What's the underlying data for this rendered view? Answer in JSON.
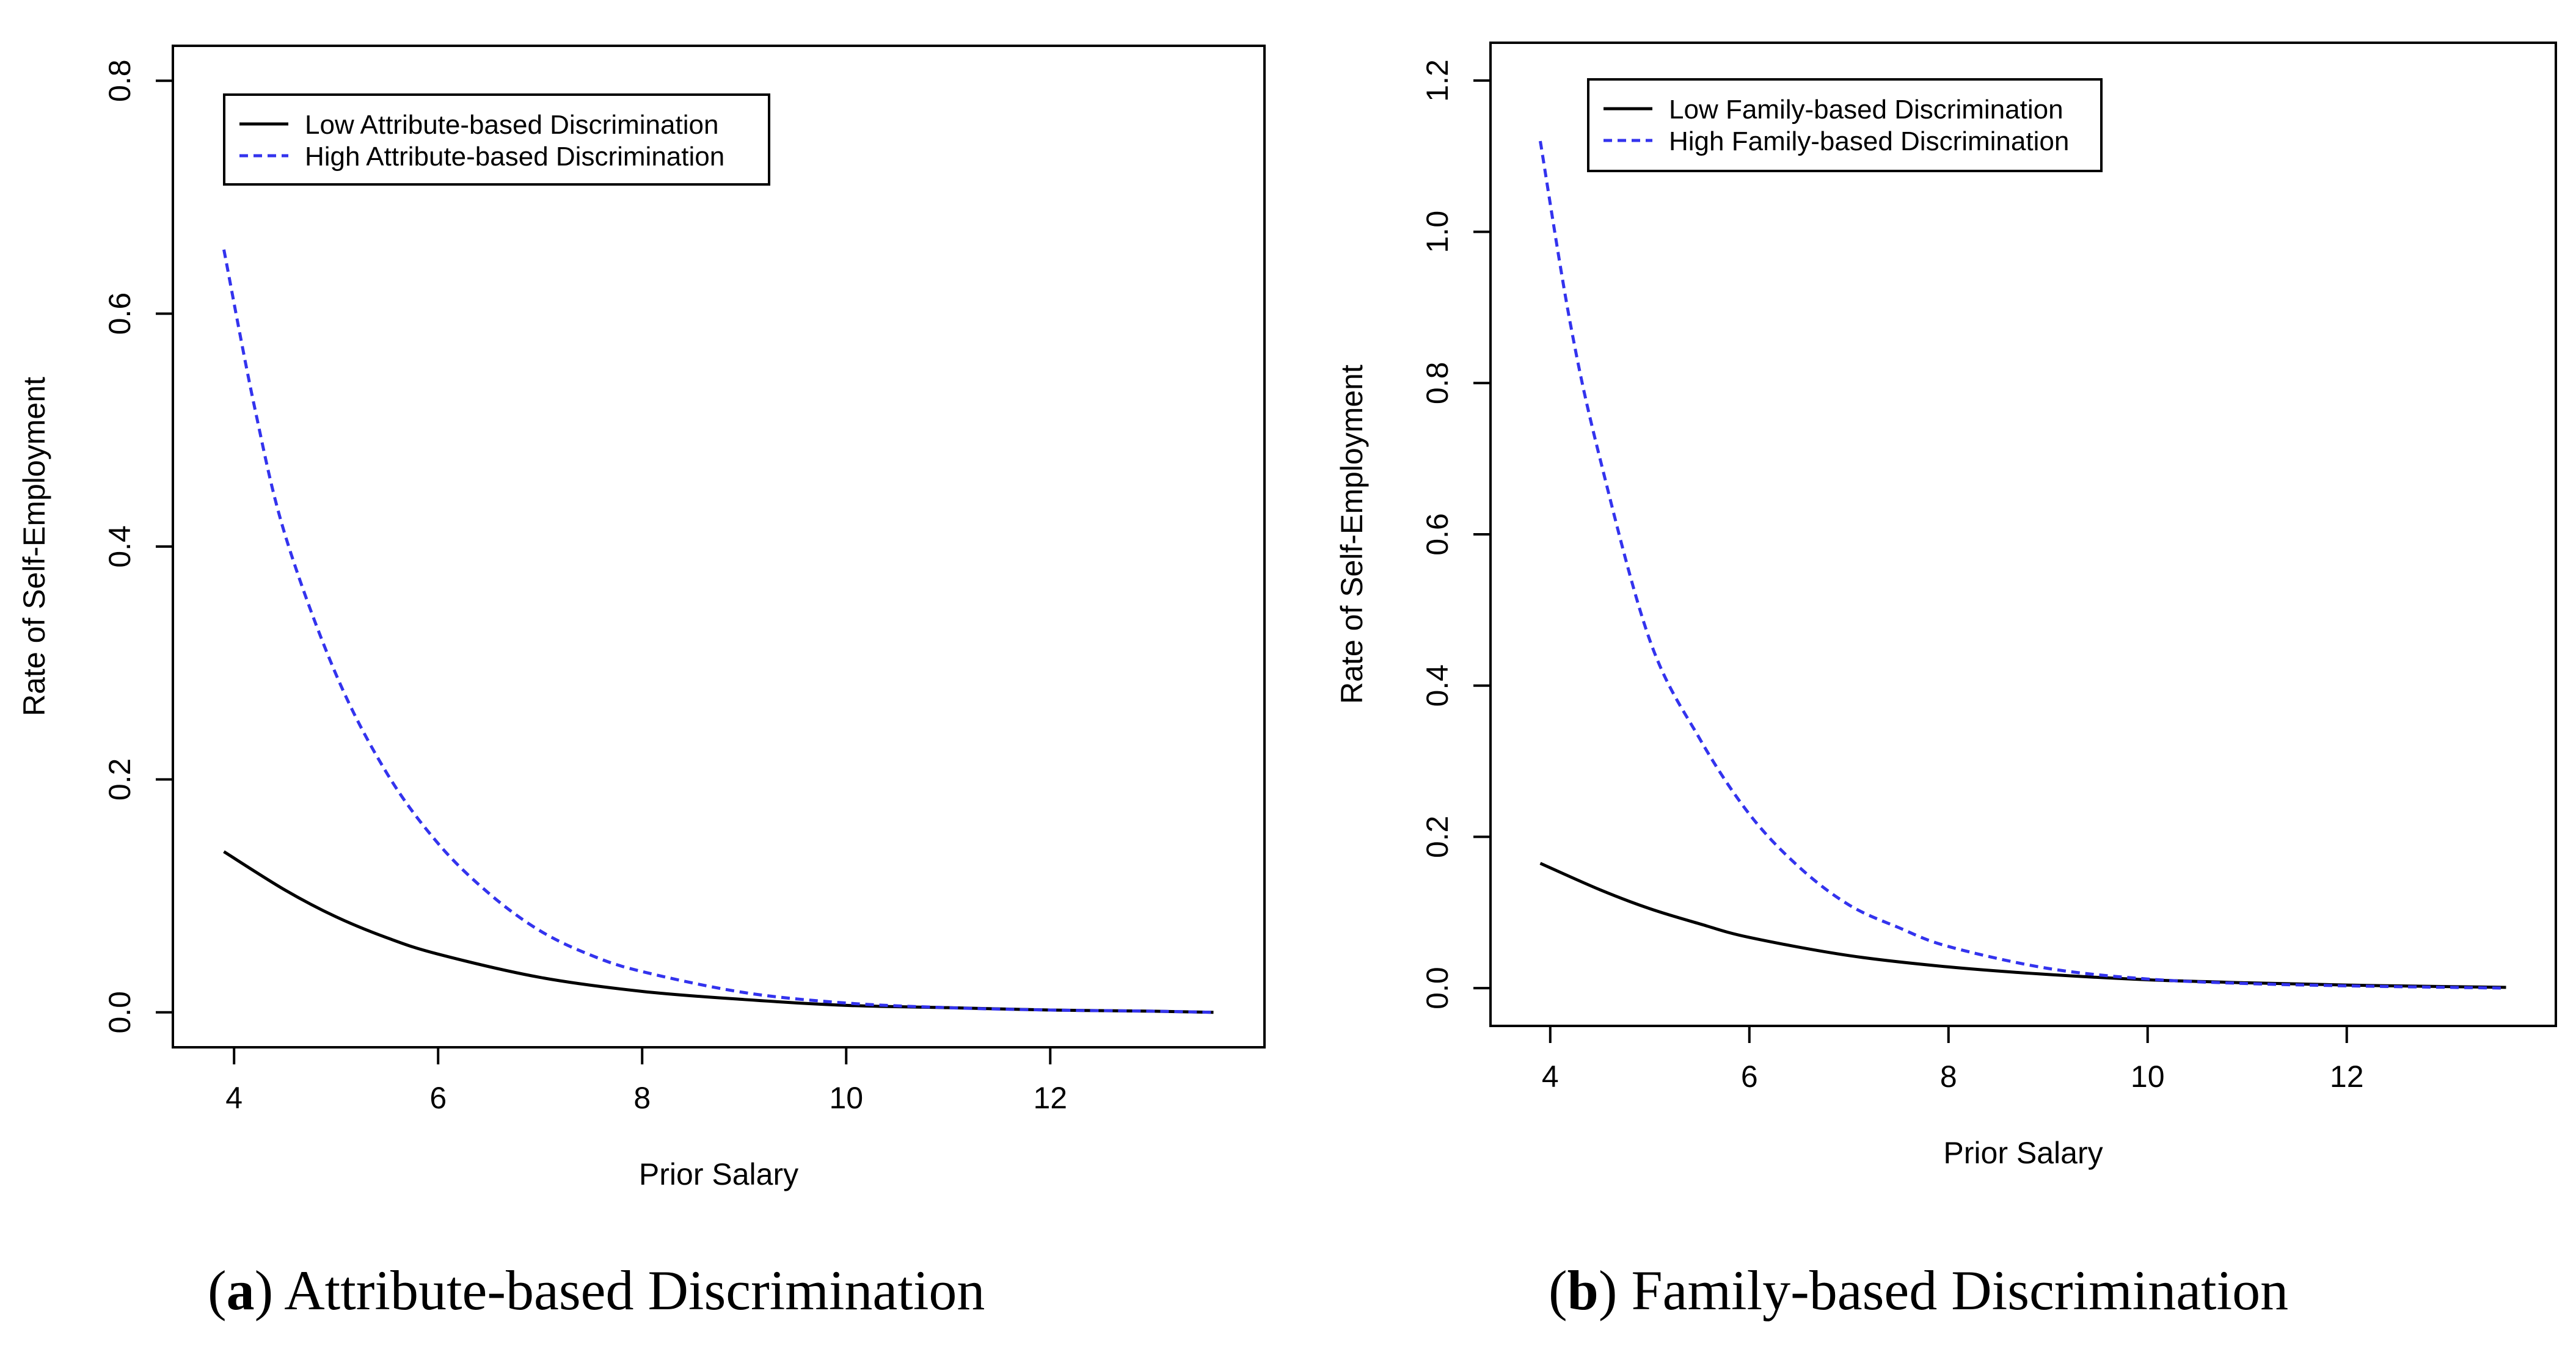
{
  "chart_data": [
    {
      "type": "line",
      "panel_id": "a",
      "caption_label": "a",
      "caption_text": "Attribute-based Discrimination",
      "xlabel": "Prior Salary",
      "ylabel": "Rate of Self-Employment",
      "xlim": [
        3.4,
        14.1
      ],
      "ylim": [
        -0.03,
        0.83
      ],
      "xticks": [
        4,
        6,
        8,
        10,
        12
      ],
      "yticks": [
        0.0,
        0.2,
        0.4,
        0.6,
        0.8
      ],
      "ytick_labels": [
        "0.0",
        "0.2",
        "0.4",
        "0.6",
        "0.8"
      ],
      "legend": {
        "position": "top-left"
      },
      "grid": false,
      "series": [
        {
          "name": "Low Attribute-based Discrimination",
          "style": "solid",
          "color": "#000000",
          "x": [
            3.9,
            4.5,
            5.0,
            5.5,
            6.0,
            7.0,
            8.0,
            9.0,
            10.0,
            11.0,
            12.0,
            13.0,
            13.6
          ],
          "y": [
            0.138,
            0.105,
            0.082,
            0.064,
            0.05,
            0.03,
            0.018,
            0.011,
            0.006,
            0.004,
            0.002,
            0.001,
            0.0
          ]
        },
        {
          "name": "High Attribute-based Discrimination",
          "style": "dashed",
          "color": "#3333ee",
          "x": [
            3.9,
            4.2,
            4.5,
            5.0,
            5.5,
            6.0,
            6.5,
            7.0,
            7.5,
            8.0,
            9.0,
            10.0,
            11.0,
            12.0,
            13.0,
            13.6
          ],
          "y": [
            0.655,
            0.52,
            0.41,
            0.29,
            0.205,
            0.145,
            0.102,
            0.07,
            0.049,
            0.035,
            0.017,
            0.008,
            0.004,
            0.002,
            0.001,
            0.0
          ]
        }
      ]
    },
    {
      "type": "line",
      "panel_id": "b",
      "caption_label": "b",
      "caption_text": "Family-based Discrimination",
      "xlabel": "Prior Salary",
      "ylabel": "Rate of Self-Employment",
      "xlim": [
        3.4,
        14.1
      ],
      "ylim": [
        -0.05,
        1.25
      ],
      "xticks": [
        4,
        6,
        8,
        10,
        12
      ],
      "yticks": [
        0.0,
        0.2,
        0.4,
        0.6,
        0.8,
        1.0,
        1.2
      ],
      "ytick_labels": [
        "0.0",
        "0.2",
        "0.4",
        "0.6",
        "0.8",
        "1.0",
        "1.2"
      ],
      "legend": {
        "position": "top-left"
      },
      "grid": false,
      "series": [
        {
          "name": "Low Family-based Discrimination",
          "style": "solid",
          "color": "#000000",
          "x": [
            3.9,
            4.5,
            5.0,
            5.5,
            6.0,
            7.0,
            8.0,
            9.0,
            10.0,
            11.0,
            12.0,
            13.0,
            13.6
          ],
          "y": [
            0.165,
            0.13,
            0.105,
            0.085,
            0.067,
            0.043,
            0.028,
            0.018,
            0.011,
            0.007,
            0.004,
            0.002,
            0.001
          ]
        },
        {
          "name": "High Family-based Discrimination",
          "style": "dashed",
          "color": "#3333ee",
          "x": [
            3.9,
            4.2,
            4.5,
            5.0,
            5.5,
            6.0,
            6.5,
            7.0,
            7.5,
            8.0,
            9.0,
            10.0,
            11.0,
            12.0,
            13.0,
            13.6
          ],
          "y": [
            1.12,
            0.88,
            0.7,
            0.46,
            0.33,
            0.23,
            0.16,
            0.11,
            0.08,
            0.055,
            0.026,
            0.012,
            0.006,
            0.003,
            0.001,
            0.0
          ]
        }
      ]
    }
  ]
}
